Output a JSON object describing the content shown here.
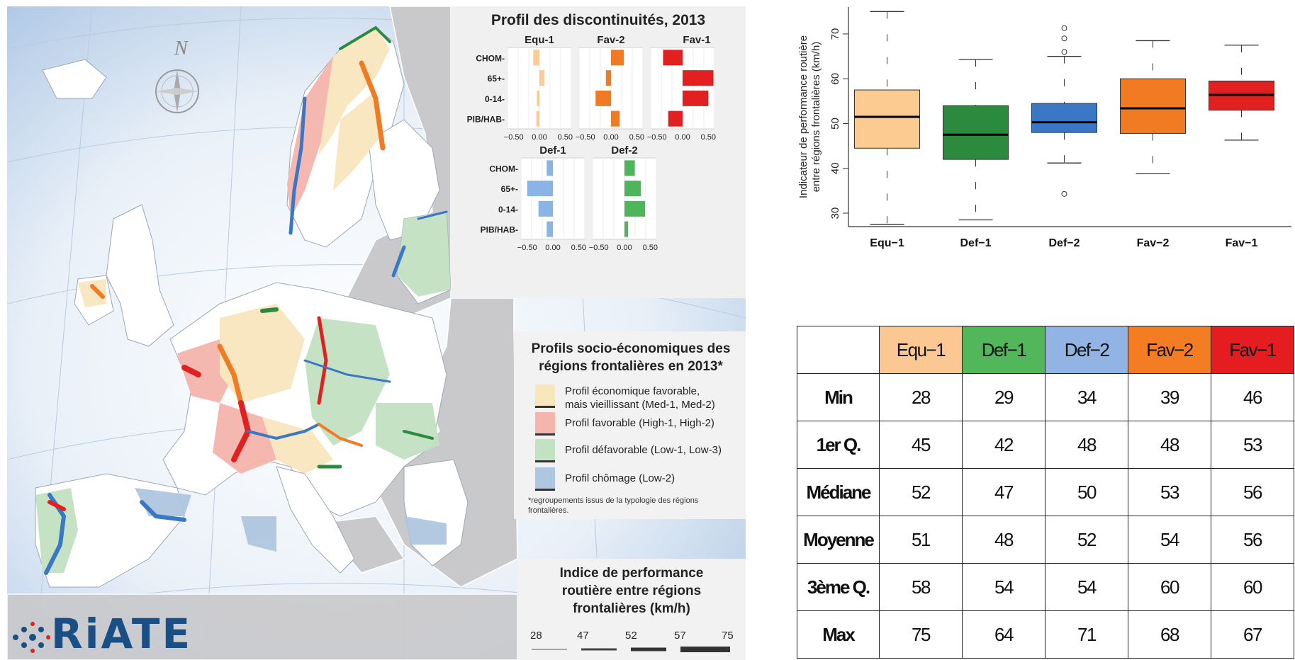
{
  "colors": {
    "equ1": "#fccb92",
    "def1": "#2b8a3e",
    "def2": "#3a77c4",
    "fav2": "#f07b22",
    "fav1": "#e32020",
    "equ1_table": "#fbc894",
    "def1_table": "#52b65a",
    "def2_table": "#92b4e4",
    "fav2_table": "#f47c22",
    "fav1_table": "#e51d21",
    "med": "#f8e6bd",
    "high": "#f5b5ac",
    "low": "#c2e2c1",
    "low2": "#afc6e0"
  },
  "map": {
    "compass_label": "N",
    "logo_text": "RiATE",
    "profile": {
      "title": "Profil des discontinuités, 2013",
      "variables": [
        "CHOM",
        "65+",
        "0-14",
        "PIB/HAB"
      ],
      "ticks": [
        "−0.50",
        "0.00",
        "0.50"
      ],
      "panels": [
        {
          "name": "Equ-1",
          "color": "#fccb92",
          "values": [
            -0.12,
            0.1,
            -0.05,
            -0.06
          ]
        },
        {
          "name": "Fav-2",
          "color": "#f07b22",
          "values": [
            0.25,
            -0.1,
            -0.3,
            0.17
          ]
        },
        {
          "name": "Fav-1",
          "color": "#e32020",
          "values": [
            -0.38,
            0.6,
            0.5,
            -0.28
          ]
        },
        {
          "name": "Def-1",
          "color": "#8ab3e6",
          "values": [
            -0.12,
            -0.5,
            -0.28,
            -0.12
          ]
        },
        {
          "name": "Def-2",
          "color": "#4fb55b",
          "values": [
            0.2,
            0.32,
            0.4,
            0.07
          ]
        }
      ]
    },
    "socio_legend": {
      "title_line1": "Profils socio-économiques des",
      "title_line2": "régions frontalières en 2013*",
      "items": [
        {
          "label_line1": "Profil économique favorable,",
          "label_line2": "mais vieillissant (Med-1, Med-2)",
          "color": "#f8e6bd"
        },
        {
          "label_line1": "Profil favorable (High-1, High-2)",
          "label_line2": "",
          "color": "#f5b5ac"
        },
        {
          "label_line1": "Profil défavorable (Low-1, Low-3)",
          "label_line2": "",
          "color": "#c2e2c1"
        },
        {
          "label_line1": "Profil chômage (Low-2)",
          "label_line2": "",
          "color": "#afc6e0"
        }
      ],
      "note_line1": "*regroupements issus de la typologie des régions",
      "note_line2": "frontalières."
    },
    "road_legend": {
      "title_line1": "Indice de performance",
      "title_line2": "routière entre régions",
      "title_line3": "frontalières (km/h)",
      "breaks": [
        "28",
        "47",
        "52",
        "57",
        "75"
      ]
    }
  },
  "chart_data": {
    "type": "boxplot",
    "ylabel_line1": "Indicateur de performance routière",
    "ylabel_line2": "entre régions frontalières (km/h)",
    "ylim": [
      27,
      76
    ],
    "yticks": [
      30,
      40,
      50,
      60,
      70
    ],
    "categories": [
      "Equ−1",
      "Def−1",
      "Def−2",
      "Fav−2",
      "Fav−1"
    ],
    "boxes": [
      {
        "name": "Equ−1",
        "min": 27.5,
        "q1": 44.5,
        "median": 51.5,
        "q3": 57.5,
        "max": 75,
        "outliers": [],
        "color": "#fccb92"
      },
      {
        "name": "Def−1",
        "min": 28.5,
        "q1": 42,
        "median": 47.5,
        "q3": 54,
        "max": 64.3,
        "outliers": [],
        "color": "#2b8a3e"
      },
      {
        "name": "Def−2",
        "min": 41.2,
        "q1": 48,
        "median": 50.3,
        "q3": 54.5,
        "max": 65,
        "outliers": [
          34.3,
          66,
          69,
          71.3
        ],
        "color": "#3a77c4"
      },
      {
        "name": "Fav−2",
        "min": 38.8,
        "q1": 47.8,
        "median": 53.4,
        "q3": 60,
        "max": 68.5,
        "outliers": [],
        "color": "#f07b22"
      },
      {
        "name": "Fav−1",
        "min": 46.3,
        "q1": 53,
        "median": 56.4,
        "q3": 59.5,
        "max": 67.5,
        "outliers": [],
        "color": "#e32020"
      }
    ]
  },
  "table": {
    "columns": [
      "Equ−1",
      "Def−1",
      "Def−2",
      "Fav−2",
      "Fav−1"
    ],
    "rows": [
      {
        "label": "Min",
        "values": [
          "28",
          "29",
          "34",
          "39",
          "46"
        ]
      },
      {
        "label": "1er Q.",
        "values": [
          "45",
          "42",
          "48",
          "48",
          "53"
        ]
      },
      {
        "label": "Médiane",
        "values": [
          "52",
          "47",
          "50",
          "53",
          "56"
        ]
      },
      {
        "label": "Moyenne",
        "values": [
          "51",
          "48",
          "52",
          "54",
          "56"
        ]
      },
      {
        "label": "3ème Q.",
        "values": [
          "58",
          "54",
          "54",
          "60",
          "60"
        ]
      },
      {
        "label": "Max",
        "values": [
          "75",
          "64",
          "71",
          "68",
          "67"
        ]
      }
    ]
  }
}
